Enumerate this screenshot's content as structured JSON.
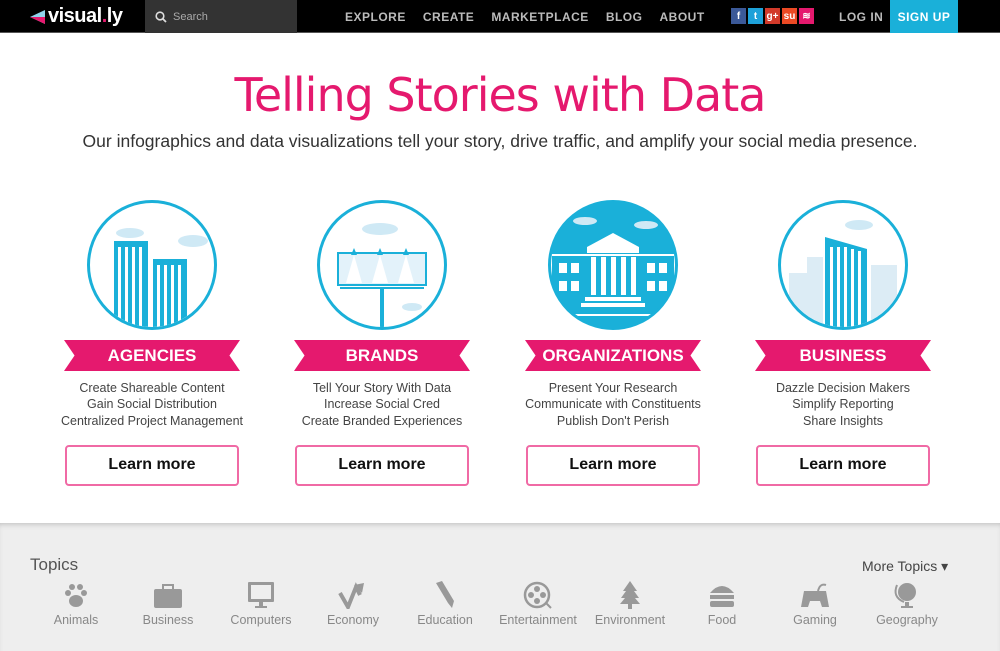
{
  "nav": {
    "logo": "visual",
    "logo_dot": ".",
    "logo_end": "ly",
    "search_placeholder": "Search",
    "menu": [
      "EXPLORE",
      "CREATE",
      "MARKETPLACE",
      "BLOG",
      "ABOUT"
    ],
    "social": [
      {
        "icon": "facebook-icon",
        "glyph": "f",
        "color": "#3b5998"
      },
      {
        "icon": "twitter-icon",
        "glyph": "t",
        "color": "#1da1d9"
      },
      {
        "icon": "google-plus-icon",
        "glyph": "g+",
        "color": "#d23a2a"
      },
      {
        "icon": "stumbleupon-icon",
        "glyph": "su",
        "color": "#eb4924"
      },
      {
        "icon": "rss-icon",
        "glyph": "≋",
        "color": "#e5196e"
      }
    ],
    "login": "LOG IN",
    "signup": "SIGN UP",
    "accent": "#1ab0d9"
  },
  "hero": {
    "title": "Telling Stories with Data",
    "subtitle": "Our infographics and data visualizations tell your story, drive traffic, and amplify your social media presence.",
    "accent": "#e5196e"
  },
  "cards": [
    {
      "label": "AGENCIES",
      "lines": [
        "Create Shareable Content",
        "Gain Social Distribution",
        "Centralized Project Management"
      ],
      "button": "Learn more"
    },
    {
      "label": "BRANDS",
      "lines": [
        "Tell Your Story With Data",
        "Increase Social Cred",
        "Create Branded Experiences"
      ],
      "button": "Learn more"
    },
    {
      "label": "ORGANIZATIONS",
      "lines": [
        "Present Your Research",
        "Communicate with Constituents",
        "Publish Don't Perish"
      ],
      "button": "Learn more"
    },
    {
      "label": "BUSINESS",
      "lines": [
        "Dazzle Decision Makers",
        "Simplify Reporting",
        "Share Insights"
      ],
      "button": "Learn more"
    }
  ],
  "topics": {
    "title": "Topics",
    "more": "More Topics ▾",
    "items": [
      "Animals",
      "Business",
      "Computers",
      "Economy",
      "Education",
      "Entertainment",
      "Environment",
      "Food",
      "Gaming",
      "Geography"
    ]
  }
}
